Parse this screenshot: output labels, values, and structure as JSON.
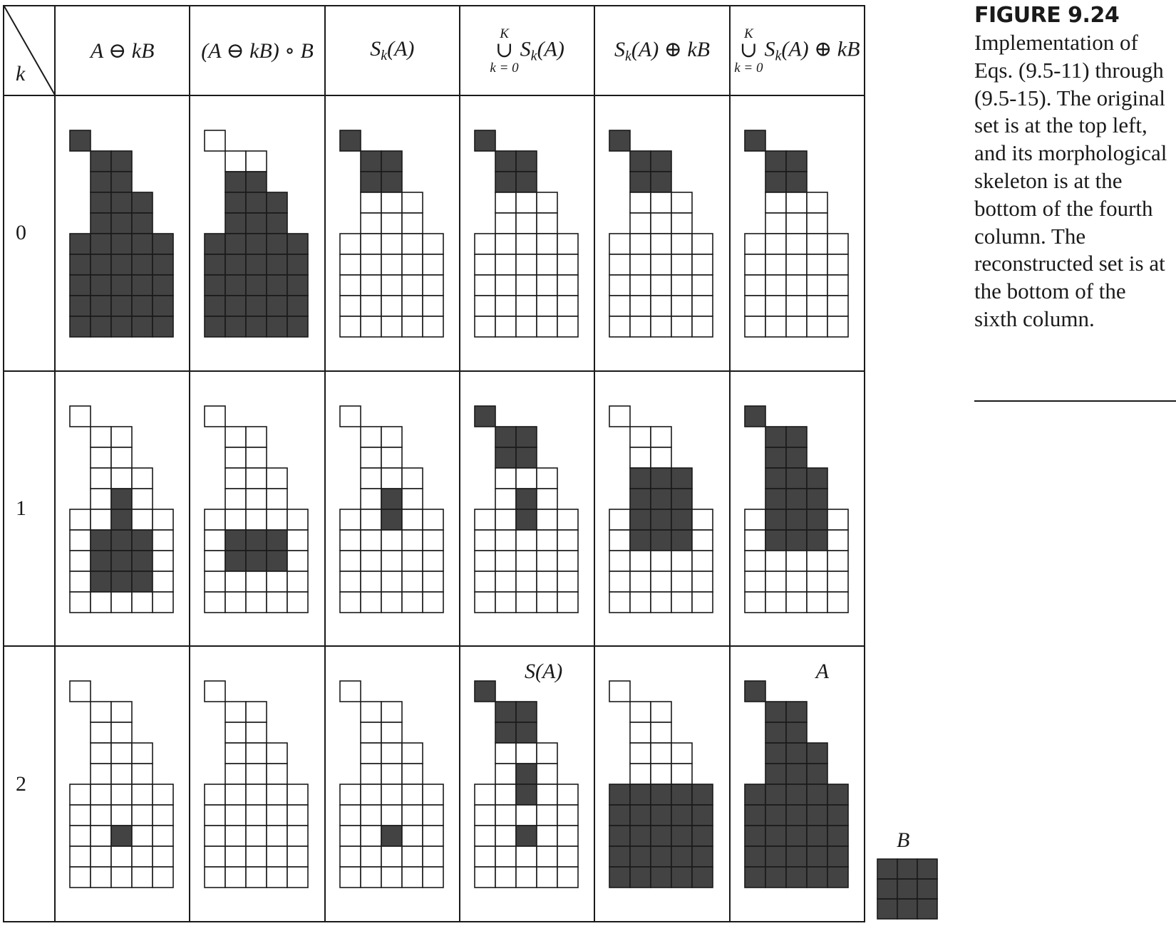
{
  "figure": {
    "number": "FIGURE 9.24",
    "caption": "Implementation of Eqs. (9.5-11) through (9.5-15). The original set is at the top left, and its morphological skeleton is at the bottom of the fourth column. The reconstructed set is at the bottom of the sixth column."
  },
  "table": {
    "corner_label": "k",
    "headers": [
      {
        "text": "A ⊖ kB"
      },
      {
        "text": "(A ⊖ kB) ∘ B"
      },
      {
        "base": "S",
        "sub": "k",
        "tail": "(A)"
      },
      {
        "upper": "K",
        "union": "∪",
        "lower": "k = 0",
        "base": "S",
        "sub": "k",
        "tail": "(A)"
      },
      {
        "base": "S",
        "sub": "k",
        "tail": "(A) ⊕ kB"
      },
      {
        "upper": "K",
        "union": "∪",
        "lower": "k = 0",
        "base": "S",
        "sub": "k",
        "tail": "(A) ⊕ kB"
      }
    ],
    "row_labels": [
      "0",
      "1",
      "2"
    ],
    "annotations": {
      "skeleton": "S(A)",
      "reconstructed": "A"
    },
    "grid_colors": {
      "filled": "#434343",
      "empty": "#ffffff",
      "line": "#1a1a1a"
    },
    "set_shape_rows": [
      [
        0,
        0
      ],
      [
        1,
        2
      ],
      [
        1,
        2
      ],
      [
        1,
        3
      ],
      [
        1,
        3
      ],
      [
        0,
        4
      ],
      [
        0,
        4
      ],
      [
        0,
        4
      ],
      [
        0,
        4
      ],
      [
        0,
        4
      ]
    ],
    "cells": [
      [
        [
          [
            0,
            0
          ],
          [
            1,
            1
          ],
          [
            1,
            2
          ],
          [
            2,
            1
          ],
          [
            2,
            2
          ],
          [
            3,
            1
          ],
          [
            3,
            2
          ],
          [
            3,
            3
          ],
          [
            4,
            1
          ],
          [
            4,
            2
          ],
          [
            4,
            3
          ],
          [
            5,
            0
          ],
          [
            5,
            1
          ],
          [
            5,
            2
          ],
          [
            5,
            3
          ],
          [
            5,
            4
          ],
          [
            6,
            0
          ],
          [
            6,
            1
          ],
          [
            6,
            2
          ],
          [
            6,
            3
          ],
          [
            6,
            4
          ],
          [
            7,
            0
          ],
          [
            7,
            1
          ],
          [
            7,
            2
          ],
          [
            7,
            3
          ],
          [
            7,
            4
          ],
          [
            8,
            0
          ],
          [
            8,
            1
          ],
          [
            8,
            2
          ],
          [
            8,
            3
          ],
          [
            8,
            4
          ],
          [
            9,
            0
          ],
          [
            9,
            1
          ],
          [
            9,
            2
          ],
          [
            9,
            3
          ],
          [
            9,
            4
          ]
        ],
        [
          [
            2,
            1
          ],
          [
            2,
            2
          ],
          [
            3,
            1
          ],
          [
            3,
            2
          ],
          [
            3,
            3
          ],
          [
            4,
            1
          ],
          [
            4,
            2
          ],
          [
            4,
            3
          ],
          [
            5,
            0
          ],
          [
            5,
            1
          ],
          [
            5,
            2
          ],
          [
            5,
            3
          ],
          [
            5,
            4
          ],
          [
            6,
            0
          ],
          [
            6,
            1
          ],
          [
            6,
            2
          ],
          [
            6,
            3
          ],
          [
            6,
            4
          ],
          [
            7,
            0
          ],
          [
            7,
            1
          ],
          [
            7,
            2
          ],
          [
            7,
            3
          ],
          [
            7,
            4
          ],
          [
            8,
            0
          ],
          [
            8,
            1
          ],
          [
            8,
            2
          ],
          [
            8,
            3
          ],
          [
            8,
            4
          ],
          [
            9,
            0
          ],
          [
            9,
            1
          ],
          [
            9,
            2
          ],
          [
            9,
            3
          ],
          [
            9,
            4
          ]
        ],
        [
          [
            0,
            0
          ],
          [
            1,
            1
          ],
          [
            1,
            2
          ],
          [
            2,
            1
          ],
          [
            2,
            2
          ]
        ],
        [
          [
            0,
            0
          ],
          [
            1,
            1
          ],
          [
            1,
            2
          ],
          [
            2,
            1
          ],
          [
            2,
            2
          ]
        ],
        [
          [
            0,
            0
          ],
          [
            1,
            1
          ],
          [
            1,
            2
          ],
          [
            2,
            1
          ],
          [
            2,
            2
          ]
        ],
        [
          [
            0,
            0
          ],
          [
            1,
            1
          ],
          [
            1,
            2
          ],
          [
            2,
            1
          ],
          [
            2,
            2
          ]
        ]
      ],
      [
        [
          [
            4,
            2
          ],
          [
            5,
            2
          ],
          [
            6,
            1
          ],
          [
            6,
            2
          ],
          [
            6,
            3
          ],
          [
            7,
            1
          ],
          [
            7,
            2
          ],
          [
            7,
            3
          ],
          [
            8,
            1
          ],
          [
            8,
            2
          ],
          [
            8,
            3
          ]
        ],
        [
          [
            6,
            1
          ],
          [
            6,
            2
          ],
          [
            6,
            3
          ],
          [
            7,
            1
          ],
          [
            7,
            2
          ],
          [
            7,
            3
          ]
        ],
        [
          [
            4,
            2
          ],
          [
            5,
            2
          ]
        ],
        [
          [
            0,
            0
          ],
          [
            1,
            1
          ],
          [
            1,
            2
          ],
          [
            2,
            1
          ],
          [
            2,
            2
          ],
          [
            4,
            2
          ],
          [
            5,
            2
          ]
        ],
        [
          [
            3,
            1
          ],
          [
            3,
            2
          ],
          [
            3,
            3
          ],
          [
            4,
            1
          ],
          [
            4,
            2
          ],
          [
            4,
            3
          ],
          [
            5,
            1
          ],
          [
            5,
            2
          ],
          [
            5,
            3
          ],
          [
            6,
            1
          ],
          [
            6,
            2
          ],
          [
            6,
            3
          ]
        ],
        [
          [
            0,
            0
          ],
          [
            1,
            1
          ],
          [
            1,
            2
          ],
          [
            2,
            1
          ],
          [
            2,
            2
          ],
          [
            3,
            1
          ],
          [
            3,
            2
          ],
          [
            3,
            3
          ],
          [
            4,
            1
          ],
          [
            4,
            2
          ],
          [
            4,
            3
          ],
          [
            5,
            1
          ],
          [
            5,
            2
          ],
          [
            5,
            3
          ],
          [
            6,
            1
          ],
          [
            6,
            2
          ],
          [
            6,
            3
          ]
        ]
      ],
      [
        [
          [
            7,
            2
          ]
        ],
        [],
        [
          [
            7,
            2
          ]
        ],
        [
          [
            0,
            0
          ],
          [
            1,
            1
          ],
          [
            1,
            2
          ],
          [
            2,
            1
          ],
          [
            2,
            2
          ],
          [
            4,
            2
          ],
          [
            5,
            2
          ],
          [
            7,
            2
          ]
        ],
        [
          [
            5,
            0
          ],
          [
            5,
            1
          ],
          [
            5,
            2
          ],
          [
            5,
            3
          ],
          [
            5,
            4
          ],
          [
            6,
            0
          ],
          [
            6,
            1
          ],
          [
            6,
            2
          ],
          [
            6,
            3
          ],
          [
            6,
            4
          ],
          [
            7,
            0
          ],
          [
            7,
            1
          ],
          [
            7,
            2
          ],
          [
            7,
            3
          ],
          [
            7,
            4
          ],
          [
            8,
            0
          ],
          [
            8,
            1
          ],
          [
            8,
            2
          ],
          [
            8,
            3
          ],
          [
            8,
            4
          ],
          [
            9,
            0
          ],
          [
            9,
            1
          ],
          [
            9,
            2
          ],
          [
            9,
            3
          ],
          [
            9,
            4
          ]
        ],
        [
          [
            0,
            0
          ],
          [
            1,
            1
          ],
          [
            1,
            2
          ],
          [
            2,
            1
          ],
          [
            2,
            2
          ],
          [
            3,
            1
          ],
          [
            3,
            2
          ],
          [
            3,
            3
          ],
          [
            4,
            1
          ],
          [
            4,
            2
          ],
          [
            4,
            3
          ],
          [
            5,
            0
          ],
          [
            5,
            1
          ],
          [
            5,
            2
          ],
          [
            5,
            3
          ],
          [
            5,
            4
          ],
          [
            6,
            0
          ],
          [
            6,
            1
          ],
          [
            6,
            2
          ],
          [
            6,
            3
          ],
          [
            6,
            4
          ],
          [
            7,
            0
          ],
          [
            7,
            1
          ],
          [
            7,
            2
          ],
          [
            7,
            3
          ],
          [
            7,
            4
          ],
          [
            8,
            0
          ],
          [
            8,
            1
          ],
          [
            8,
            2
          ],
          [
            8,
            3
          ],
          [
            8,
            4
          ],
          [
            9,
            0
          ],
          [
            9,
            1
          ],
          [
            9,
            2
          ],
          [
            9,
            3
          ],
          [
            9,
            4
          ]
        ]
      ]
    ]
  },
  "structuring_element": {
    "label": "B",
    "size": 3
  }
}
